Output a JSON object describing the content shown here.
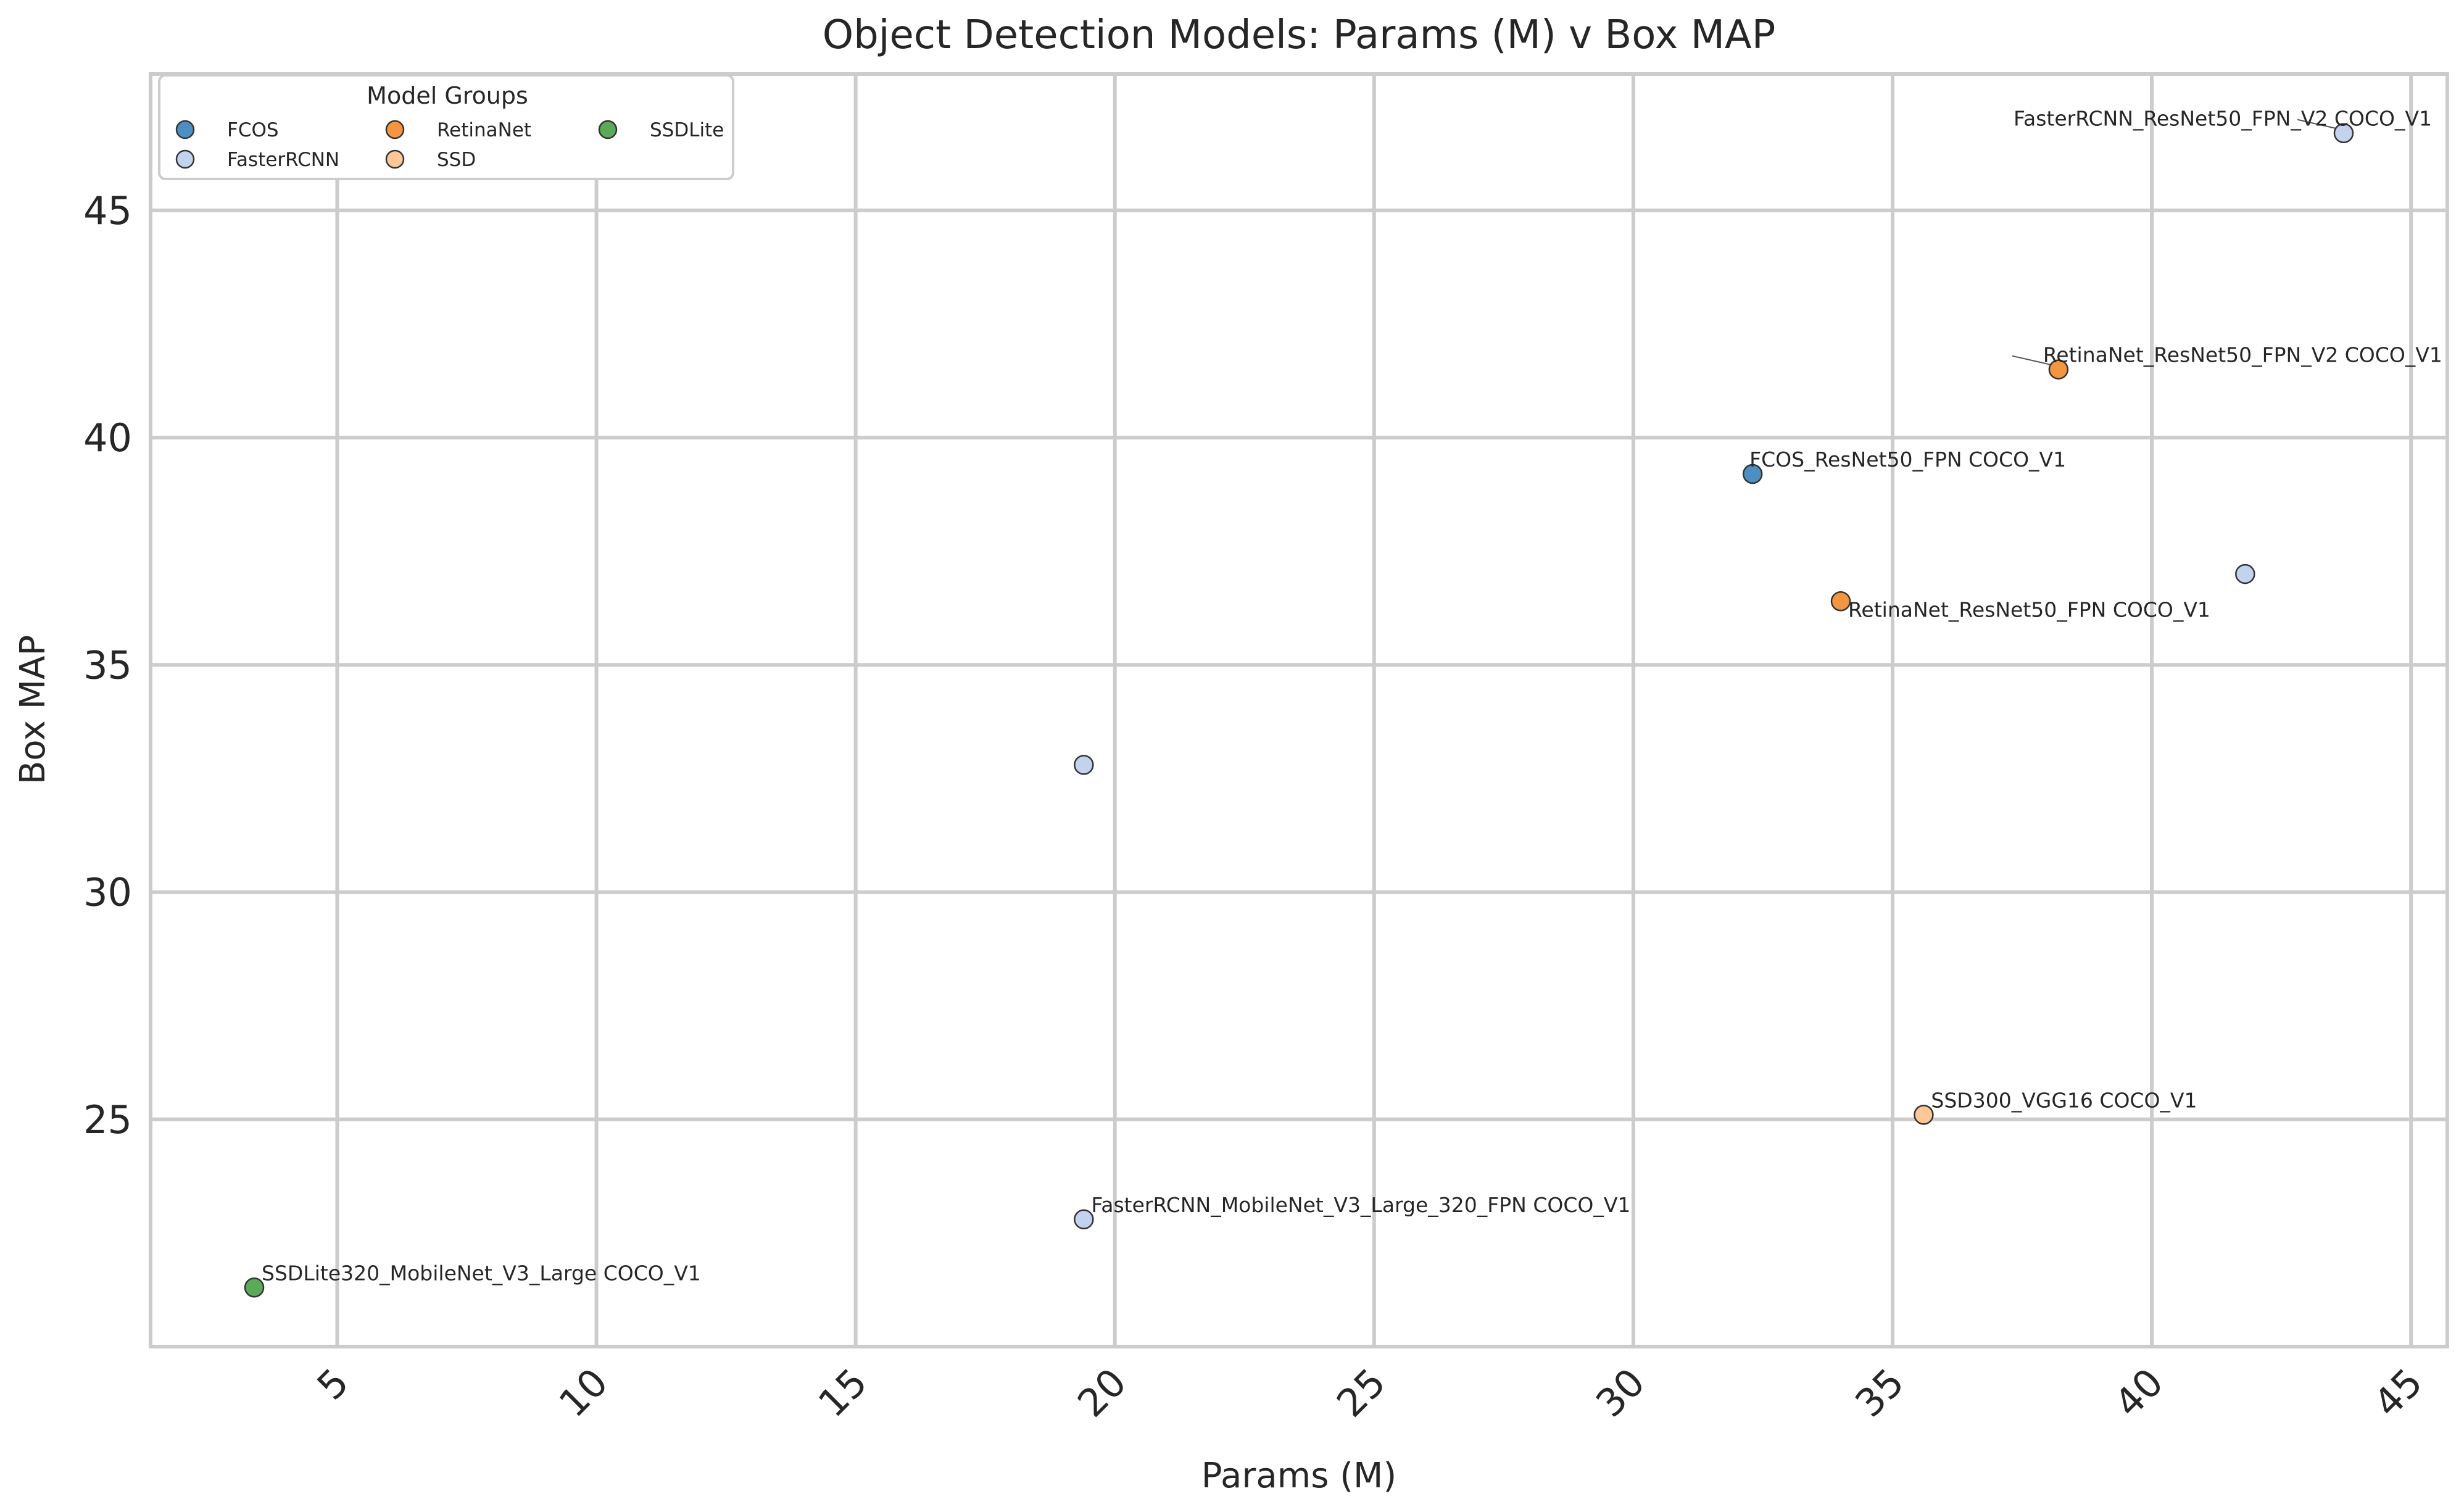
{
  "chart_data": {
    "type": "scatter",
    "title": "Object Detection Models: Params (M) v Box MAP",
    "xlabel": "Params (M)",
    "ylabel": "Box MAP",
    "xlim": [
      1.4,
      45.7
    ],
    "ylim": [
      20.0,
      48.0
    ],
    "xticks": [
      5,
      10,
      15,
      20,
      25,
      30,
      35,
      40,
      45
    ],
    "yticks": [
      25,
      30,
      35,
      40,
      45
    ],
    "grid": true,
    "legend": {
      "title": "Model Groups",
      "placement": "top-left",
      "entries": [
        {
          "name": "FCOS",
          "color": "#4c8fc4"
        },
        {
          "name": "FasterRCNN",
          "color": "#c3d3ee"
        },
        {
          "name": "RetinaNet",
          "color": "#f5953f"
        },
        {
          "name": "SSD",
          "color": "#fdc797"
        },
        {
          "name": "SSDLite",
          "color": "#5aab59"
        }
      ]
    },
    "points": [
      {
        "group": "FCOS",
        "x": 32.3,
        "y": 39.2,
        "label": "FCOS_ResNet50_FPN COCO_V1",
        "color": "#4c8fc4"
      },
      {
        "group": "FasterRCNN",
        "x": 43.7,
        "y": 46.7,
        "label": "FasterRCNN_ResNet50_FPN_V2 COCO_V1",
        "color": "#c3d3ee"
      },
      {
        "group": "FasterRCNN",
        "x": 41.8,
        "y": 37.0,
        "label": "",
        "color": "#c3d3ee"
      },
      {
        "group": "FasterRCNN",
        "x": 19.4,
        "y": 32.8,
        "label": "",
        "color": "#c3d3ee"
      },
      {
        "group": "FasterRCNN",
        "x": 19.4,
        "y": 22.8,
        "label": "FasterRCNN_MobileNet_V3_Large_320_FPN COCO_V1",
        "color": "#c3d3ee"
      },
      {
        "group": "RetinaNet",
        "x": 38.2,
        "y": 41.5,
        "label": "RetinaNet_ResNet50_FPN_V2 COCO_V1",
        "color": "#f5953f"
      },
      {
        "group": "RetinaNet",
        "x": 34.0,
        "y": 36.4,
        "label": "RetinaNet_ResNet50_FPN COCO_V1",
        "color": "#f5953f"
      },
      {
        "group": "SSD",
        "x": 35.6,
        "y": 25.1,
        "label": "SSD300_VGG16 COCO_V1",
        "color": "#fdc797"
      },
      {
        "group": "SSDLite",
        "x": 3.4,
        "y": 21.3,
        "label": "SSDLite320_MobileNet_V3_Large COCO_V1",
        "color": "#5aab59"
      }
    ]
  }
}
